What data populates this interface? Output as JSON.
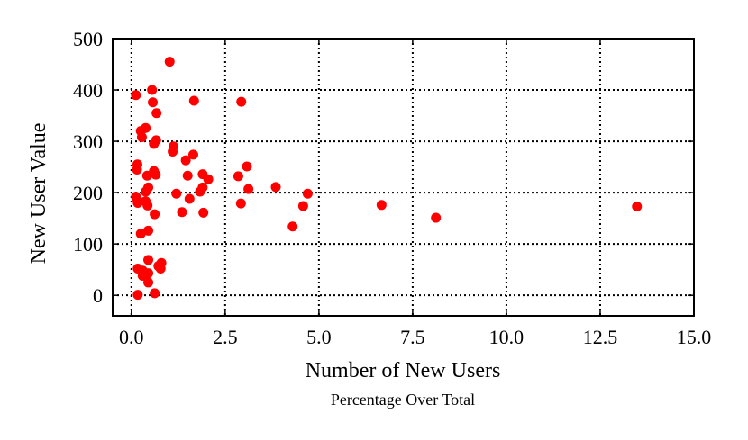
{
  "chart_data": {
    "type": "scatter",
    "xlabel": "Number of New Users",
    "xsublabel": "Percentage Over Total",
    "ylabel": "New User Value",
    "xlim": [
      -0.5,
      15.0
    ],
    "ylim": [
      -40,
      500
    ],
    "xticks": [
      0.0,
      2.5,
      5.0,
      7.5,
      10.0,
      12.5,
      15.0
    ],
    "xtick_labels": [
      "0.0",
      "2.5",
      "5.0",
      "7.5",
      "10.0",
      "12.5",
      "15.0"
    ],
    "yticks": [
      0,
      100,
      200,
      300,
      400,
      500
    ],
    "ytick_labels": [
      "0",
      "100",
      "200",
      "300",
      "400",
      "500"
    ],
    "grid": true,
    "marker_color": "#ff0000",
    "points": [
      {
        "x": 1.02,
        "y": 455
      },
      {
        "x": 0.55,
        "y": 400
      },
      {
        "x": 0.12,
        "y": 390
      },
      {
        "x": 0.57,
        "y": 376
      },
      {
        "x": 1.67,
        "y": 379
      },
      {
        "x": 2.93,
        "y": 377
      },
      {
        "x": 0.67,
        "y": 355
      },
      {
        "x": 0.38,
        "y": 326
      },
      {
        "x": 0.25,
        "y": 320
      },
      {
        "x": 0.28,
        "y": 308
      },
      {
        "x": 0.66,
        "y": 302
      },
      {
        "x": 0.6,
        "y": 295
      },
      {
        "x": 1.12,
        "y": 290
      },
      {
        "x": 1.1,
        "y": 280
      },
      {
        "x": 1.65,
        "y": 274
      },
      {
        "x": 1.45,
        "y": 263
      },
      {
        "x": 0.16,
        "y": 255
      },
      {
        "x": 3.08,
        "y": 251
      },
      {
        "x": 0.15,
        "y": 245
      },
      {
        "x": 0.6,
        "y": 242
      },
      {
        "x": 0.65,
        "y": 235
      },
      {
        "x": 1.9,
        "y": 236
      },
      {
        "x": 1.5,
        "y": 233
      },
      {
        "x": 2.85,
        "y": 232
      },
      {
        "x": 0.42,
        "y": 233
      },
      {
        "x": 2.05,
        "y": 226
      },
      {
        "x": 3.85,
        "y": 211
      },
      {
        "x": 0.45,
        "y": 210
      },
      {
        "x": 1.9,
        "y": 210
      },
      {
        "x": 3.12,
        "y": 207
      },
      {
        "x": 0.38,
        "y": 202
      },
      {
        "x": 1.83,
        "y": 202
      },
      {
        "x": 1.2,
        "y": 198
      },
      {
        "x": 4.7,
        "y": 198
      },
      {
        "x": 0.12,
        "y": 192
      },
      {
        "x": 0.15,
        "y": 188
      },
      {
        "x": 1.55,
        "y": 188
      },
      {
        "x": 0.38,
        "y": 183
      },
      {
        "x": 0.17,
        "y": 180
      },
      {
        "x": 2.92,
        "y": 179
      },
      {
        "x": 0.43,
        "y": 175
      },
      {
        "x": 6.67,
        "y": 176
      },
      {
        "x": 4.58,
        "y": 174
      },
      {
        "x": 13.48,
        "y": 173
      },
      {
        "x": 1.35,
        "y": 162
      },
      {
        "x": 1.92,
        "y": 161
      },
      {
        "x": 0.62,
        "y": 158
      },
      {
        "x": 8.12,
        "y": 151
      },
      {
        "x": 4.3,
        "y": 134
      },
      {
        "x": 0.45,
        "y": 126
      },
      {
        "x": 0.25,
        "y": 120
      },
      {
        "x": 0.45,
        "y": 69
      },
      {
        "x": 0.8,
        "y": 63
      },
      {
        "x": 0.72,
        "y": 57
      },
      {
        "x": 0.17,
        "y": 52
      },
      {
        "x": 0.78,
        "y": 52
      },
      {
        "x": 0.3,
        "y": 48
      },
      {
        "x": 0.45,
        "y": 43
      },
      {
        "x": 0.3,
        "y": 38
      },
      {
        "x": 0.45,
        "y": 25
      },
      {
        "x": 0.62,
        "y": 4
      },
      {
        "x": 0.17,
        "y": 1
      }
    ]
  }
}
